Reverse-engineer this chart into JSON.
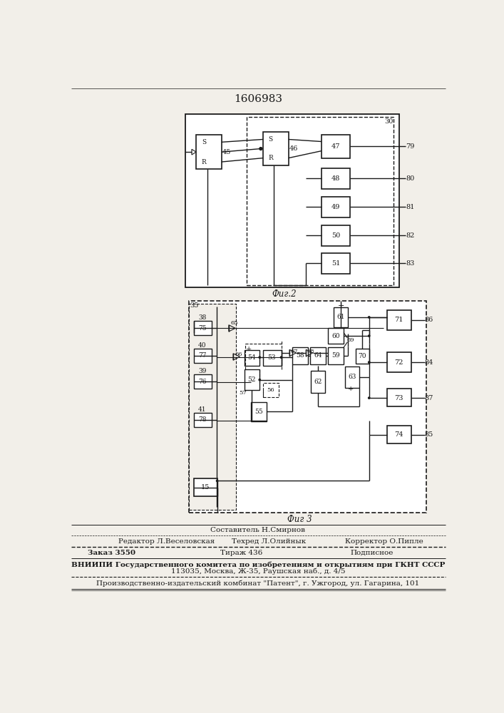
{
  "title": "1606983",
  "fig2_label": "Фиг.2",
  "fig3_label": "Фиг 3",
  "bg_color": "#f2efe9",
  "line_color": "#1a1a1a"
}
